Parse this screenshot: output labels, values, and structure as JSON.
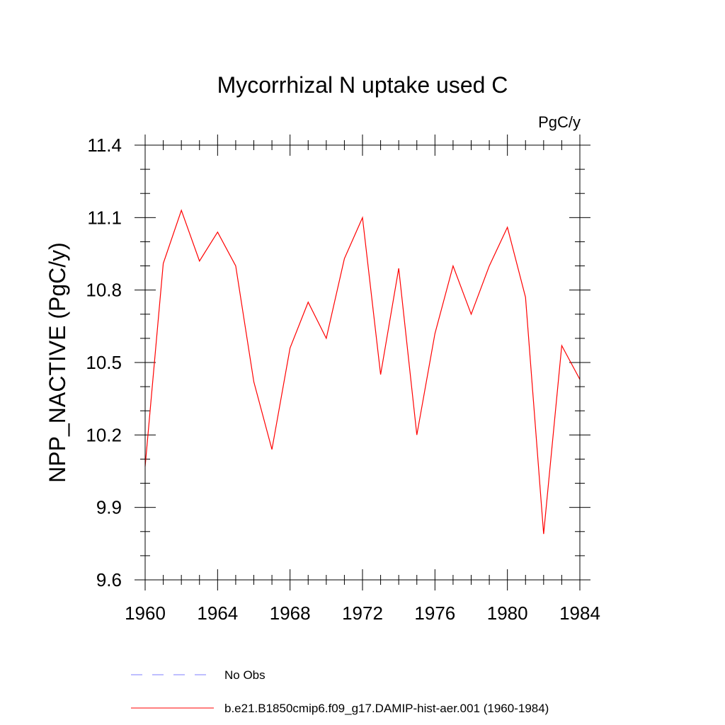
{
  "chart_data": {
    "type": "line",
    "title": "Mycorrhizal N uptake used C",
    "units_label": "PgC/y",
    "xlabel": "",
    "ylabel": "NPP_NACTIVE  (PgC/y)",
    "xlim": [
      1960,
      1984
    ],
    "ylim": [
      9.6,
      11.4
    ],
    "x_ticks": [
      1960,
      1964,
      1968,
      1972,
      1976,
      1980,
      1984
    ],
    "x_tick_labels": [
      "1960",
      "1964",
      "1968",
      "1972",
      "1976",
      "1980",
      "1984"
    ],
    "y_ticks": [
      9.6,
      9.9,
      10.2,
      10.5,
      10.8,
      11.1,
      11.4
    ],
    "y_tick_labels": [
      "9.6",
      "9.9",
      "10.2",
      "10.5",
      "10.8",
      "11.1",
      "11.4"
    ],
    "x_minor_step": 1,
    "y_minor_step": 0.1,
    "grid": false,
    "legend_position": "bottom",
    "series": [
      {
        "name": "b.e21.B1850cmip6.f09_g17.DAMIP-hist-aer.001 (1960-1984)",
        "color": "#ff0000",
        "dash": "solid",
        "x": [
          1960,
          1961,
          1962,
          1963,
          1964,
          1965,
          1966,
          1967,
          1968,
          1969,
          1970,
          1971,
          1972,
          1973,
          1974,
          1975,
          1976,
          1977,
          1978,
          1979,
          1980,
          1981,
          1982,
          1983,
          1984
        ],
        "values": [
          10.07,
          10.91,
          11.13,
          10.92,
          11.04,
          10.9,
          10.42,
          10.14,
          10.56,
          10.75,
          10.6,
          10.93,
          11.1,
          10.45,
          10.89,
          10.2,
          10.62,
          10.9,
          10.7,
          10.9,
          11.06,
          10.77,
          9.79,
          10.57,
          10.43
        ]
      }
    ],
    "legend": [
      {
        "label": "No Obs",
        "color": "#7f7fff",
        "dash": "dashed"
      },
      {
        "label": "b.e21.B1850cmip6.f09_g17.DAMIP-hist-aer.001 (1960-1984)",
        "color": "#ff0000",
        "dash": "solid"
      }
    ]
  }
}
